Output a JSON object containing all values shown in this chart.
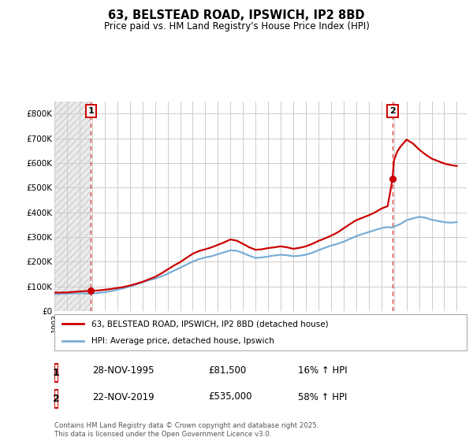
{
  "title": "63, BELSTEAD ROAD, IPSWICH, IP2 8BD",
  "subtitle": "Price paid vs. HM Land Registry's House Price Index (HPI)",
  "legend_label_red": "63, BELSTEAD ROAD, IPSWICH, IP2 8BD (detached house)",
  "legend_label_blue": "HPI: Average price, detached house, Ipswich",
  "annotation1_date": "28-NOV-1995",
  "annotation1_price": 81500,
  "annotation1_hpi": "16% ↑ HPI",
  "annotation2_date": "22-NOV-2019",
  "annotation2_price": 535000,
  "annotation2_hpi": "58% ↑ HPI",
  "footer": "Contains HM Land Registry data © Crown copyright and database right 2025.\nThis data is licensed under the Open Government Licence v3.0.",
  "bg_color": "#ffffff",
  "grid_color": "#cccccc",
  "red_color": "#cc0000",
  "blue_color": "#7aadd4",
  "ylim": [
    0,
    850000
  ],
  "ytick_labels": [
    "£0",
    "£100K",
    "£200K",
    "£300K",
    "£400K",
    "£500K",
    "£600K",
    "£700K",
    "£800K"
  ],
  "yticks": [
    0,
    100000,
    200000,
    300000,
    400000,
    500000,
    600000,
    700000,
    800000
  ],
  "xlim_start": 1993.0,
  "xlim_end": 2025.8,
  "sale1_x": 1995.91,
  "sale1_y": 81500,
  "sale2_x": 2019.89,
  "sale2_y": 535000,
  "red_line_x": [
    1993.0,
    1993.5,
    1994.0,
    1994.5,
    1995.0,
    1995.5,
    1995.91,
    1996.5,
    1997.0,
    1997.5,
    1998.0,
    1998.5,
    1999.0,
    1999.5,
    2000.0,
    2000.5,
    2001.0,
    2001.5,
    2002.0,
    2002.5,
    2003.0,
    2003.5,
    2004.0,
    2004.5,
    2005.0,
    2005.5,
    2006.0,
    2006.5,
    2007.0,
    2007.5,
    2008.0,
    2008.5,
    2009.0,
    2009.5,
    2010.0,
    2010.5,
    2011.0,
    2011.5,
    2012.0,
    2012.5,
    2013.0,
    2013.5,
    2014.0,
    2014.5,
    2015.0,
    2015.5,
    2016.0,
    2016.5,
    2017.0,
    2017.5,
    2018.0,
    2018.5,
    2019.0,
    2019.5,
    2019.89,
    2020.0,
    2020.25,
    2020.5,
    2021.0,
    2021.5,
    2022.0,
    2022.5,
    2023.0,
    2023.5,
    2024.0,
    2024.5,
    2025.0
  ],
  "red_line_y": [
    74000,
    74500,
    75000,
    77000,
    79000,
    80500,
    81500,
    83000,
    86000,
    89000,
    93000,
    97000,
    103000,
    110000,
    118000,
    128000,
    138000,
    152000,
    168000,
    184000,
    198000,
    215000,
    232000,
    243000,
    250000,
    258000,
    268000,
    278000,
    290000,
    285000,
    272000,
    258000,
    248000,
    250000,
    255000,
    258000,
    262000,
    258000,
    252000,
    256000,
    262000,
    272000,
    284000,
    294000,
    305000,
    318000,
    335000,
    352000,
    368000,
    378000,
    388000,
    400000,
    415000,
    425000,
    535000,
    610000,
    645000,
    665000,
    695000,
    680000,
    655000,
    635000,
    618000,
    608000,
    598000,
    592000,
    588000
  ],
  "blue_line_x": [
    1993.0,
    1993.5,
    1994.0,
    1994.5,
    1995.0,
    1995.91,
    1996.5,
    1997.0,
    1997.5,
    1998.0,
    1998.5,
    1999.0,
    1999.5,
    2000.0,
    2000.5,
    2001.0,
    2001.5,
    2002.0,
    2002.5,
    2003.0,
    2003.5,
    2004.0,
    2004.5,
    2005.0,
    2005.5,
    2006.0,
    2006.5,
    2007.0,
    2007.5,
    2008.0,
    2008.5,
    2009.0,
    2009.5,
    2010.0,
    2010.5,
    2011.0,
    2011.5,
    2012.0,
    2012.5,
    2013.0,
    2013.5,
    2014.0,
    2014.5,
    2015.0,
    2015.5,
    2016.0,
    2016.5,
    2017.0,
    2017.5,
    2018.0,
    2018.5,
    2019.0,
    2019.5,
    2019.89,
    2020.0,
    2020.5,
    2021.0,
    2021.5,
    2022.0,
    2022.5,
    2023.0,
    2023.5,
    2024.0,
    2024.5,
    2025.0
  ],
  "blue_line_y": [
    68000,
    69000,
    70000,
    71000,
    72000,
    70000,
    73000,
    76000,
    80000,
    86000,
    92000,
    99000,
    107000,
    116000,
    124000,
    131000,
    140000,
    151000,
    163000,
    175000,
    188000,
    200000,
    210000,
    217000,
    222000,
    230000,
    238000,
    246000,
    244000,
    235000,
    224000,
    215000,
    217000,
    221000,
    225000,
    228000,
    226000,
    222000,
    224000,
    228000,
    236000,
    246000,
    256000,
    265000,
    272000,
    281000,
    292000,
    303000,
    312000,
    320000,
    328000,
    336000,
    340000,
    338000,
    342000,
    352000,
    368000,
    375000,
    382000,
    378000,
    370000,
    365000,
    360000,
    358000,
    360000
  ]
}
